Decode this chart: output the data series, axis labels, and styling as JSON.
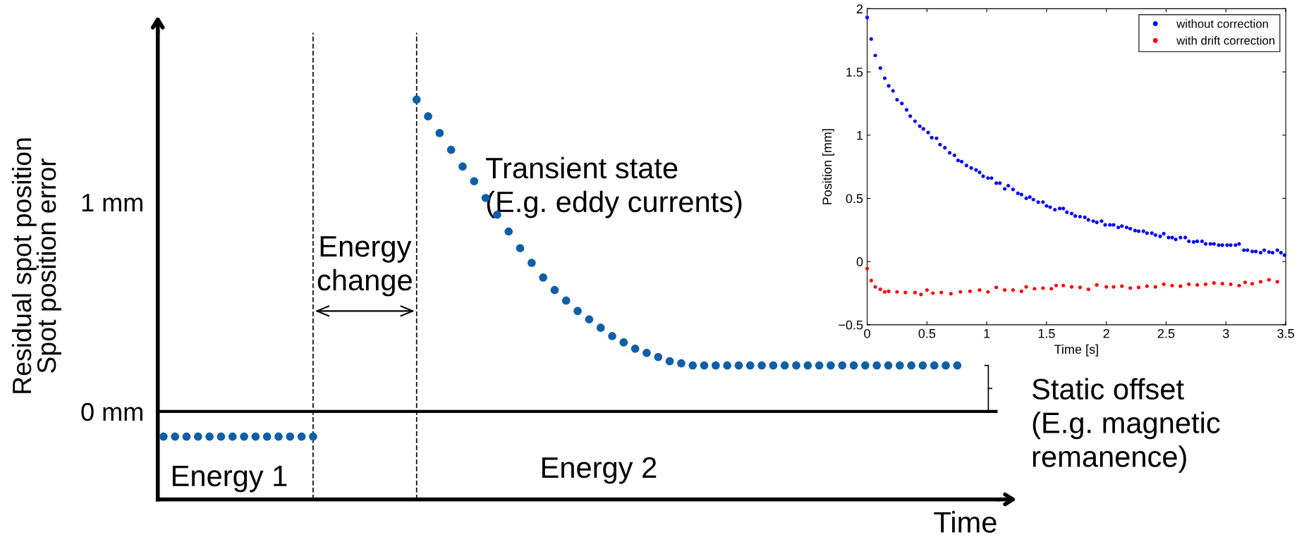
{
  "chart_data": [
    {
      "type": "scatter",
      "xlabel": "Time",
      "ylabel": "Residual spot position\nSpot position error",
      "ylim": [
        -0.42,
        1.81
      ],
      "yticks": [
        {
          "value": 0,
          "label": "0 mm"
        },
        {
          "value": 1,
          "label": "1 mm"
        }
      ],
      "tick_labels": "y",
      "grid": false,
      "legend": false,
      "marker": "circle",
      "categories": [
        null,
        null,
        null,
        null,
        null,
        null,
        null,
        null,
        null,
        null,
        null,
        null,
        null,
        null,
        null,
        null,
        null,
        null,
        null,
        null,
        null,
        null,
        null,
        null,
        null,
        null,
        null,
        null,
        null,
        null,
        null,
        null,
        null,
        null,
        null,
        null,
        null,
        null,
        null,
        null,
        null,
        null,
        null,
        null,
        null,
        null,
        null,
        null,
        null,
        null,
        null,
        null,
        null,
        null,
        null,
        null,
        null,
        null,
        null,
        null,
        null,
        null,
        null,
        null,
        null,
        null,
        null,
        null,
        null,
        null,
        null,
        null,
        null
      ],
      "series": [
        {
          "color": "#0f5fa8",
          "values": [
            -0.12,
            -0.12,
            -0.12,
            -0.12,
            -0.12,
            -0.12,
            -0.12,
            -0.12,
            -0.12,
            -0.12,
            -0.12,
            -0.12,
            -0.12,
            -0.12,
            null,
            null,
            null,
            null,
            null,
            null,
            null,
            null,
            null,
            null,
            null,
            null,
            null,
            null,
            null,
            null,
            null,
            null,
            null,
            null,
            null,
            null,
            null,
            null,
            null,
            null,
            null,
            null,
            null,
            null,
            null,
            null,
            null,
            null,
            null,
            null,
            null,
            null,
            null,
            null,
            null,
            null,
            null,
            null,
            null,
            null,
            null,
            null,
            null,
            null,
            null,
            null,
            null,
            null,
            null,
            null,
            null,
            null,
            null
          ]
        },
        {
          "color": "#0f5fa8",
          "values": [
            null,
            null,
            null,
            null,
            null,
            null,
            null,
            null,
            null,
            null,
            null,
            null,
            null,
            null,
            null,
            null,
            null,
            null,
            null,
            null,
            null,
            null,
            1.49,
            1.41,
            1.33,
            1.25,
            1.17,
            1.1,
            1.02,
            0.94,
            0.86,
            0.78,
            0.71,
            0.64,
            0.58,
            0.53,
            0.48,
            0.44,
            0.4,
            0.36,
            0.33,
            0.3,
            0.28,
            0.26,
            0.24,
            0.23,
            0.22,
            0.22,
            0.22,
            0.22,
            0.22,
            0.22,
            0.22,
            0.22,
            0.22,
            0.22,
            0.22,
            0.22,
            0.22,
            0.22,
            0.22,
            0.22,
            0.22,
            0.22,
            0.22,
            0.22,
            0.22,
            0.22,
            0.22,
            0.22,
            null,
            null,
            null
          ]
        }
      ],
      "ref_lines": [
        {
          "axis": "y",
          "value": 0,
          "color": "#000000",
          "line_style": "solid"
        }
      ],
      "annotations": [
        "Energy 1",
        "Energy 2",
        "Transient state\n(E.g. eddy currents)",
        "Static offset\n(E.g. magnetic\nremanence)",
        "Energy\nchange"
      ]
    },
    {
      "type": "scatter",
      "xlabel": "Time [s]",
      "ylabel": "Position [mm]",
      "xlim": [
        0,
        3.5
      ],
      "ylim": [
        -0.5,
        2
      ],
      "xticks": [
        0,
        0.5,
        1,
        1.5,
        2,
        2.5,
        3,
        3.5
      ],
      "yticks": [
        {
          "value": -0.5,
          "label": "−0.5"
        },
        0,
        0.5,
        1,
        1.5,
        2
      ],
      "grid": false,
      "legend": "top right",
      "marker": "circle",
      "series": [
        {
          "name": "without correction",
          "color": "#0000ff",
          "x": [
            0,
            0.034,
            0.068,
            0.11,
            0.147,
            0.18,
            0.216,
            0.25,
            0.29,
            0.33,
            0.36,
            0.4,
            0.44,
            0.47,
            0.51,
            0.54,
            0.58,
            0.61,
            0.65,
            0.69,
            0.73,
            0.76,
            0.79,
            0.83,
            0.87,
            0.91,
            0.94,
            0.97,
            1.01,
            1.04,
            1.08,
            1.11,
            1.15,
            1.18,
            1.22,
            1.26,
            1.29,
            1.33,
            1.36,
            1.39,
            1.43,
            1.47,
            1.5,
            1.53,
            1.57,
            1.61,
            1.64,
            1.67,
            1.71,
            1.74,
            1.78,
            1.82,
            1.85,
            1.89,
            1.92,
            1.96,
            1.99,
            2.03,
            2.06,
            2.1,
            2.13,
            2.17,
            2.2,
            2.24,
            2.27,
            2.31,
            2.34,
            2.38,
            2.41,
            2.45,
            2.48,
            2.52,
            2.55,
            2.58,
            2.62,
            2.66,
            2.69,
            2.73,
            2.76,
            2.8,
            2.83,
            2.87,
            2.9,
            2.94,
            2.97,
            3.01,
            3.04,
            3.08,
            3.11,
            3.15,
            3.18,
            3.22,
            3.25,
            3.29,
            3.32,
            3.36,
            3.39,
            3.43,
            3.46,
            3.49
          ],
          "values": [
            1.93,
            1.76,
            1.63,
            1.53,
            1.45,
            1.39,
            1.35,
            1.28,
            1.25,
            1.2,
            1.15,
            1.11,
            1.07,
            1.05,
            1.02,
            0.98,
            0.975,
            0.925,
            0.9,
            0.86,
            0.84,
            0.8,
            0.79,
            0.76,
            0.74,
            0.725,
            0.705,
            0.675,
            0.66,
            0.66,
            0.62,
            0.62,
            0.575,
            0.6,
            0.57,
            0.54,
            0.53,
            0.5,
            0.51,
            0.49,
            0.47,
            0.47,
            0.44,
            0.43,
            0.41,
            0.42,
            0.42,
            0.39,
            0.38,
            0.36,
            0.355,
            0.35,
            0.33,
            0.32,
            0.31,
            0.32,
            0.29,
            0.29,
            0.29,
            0.27,
            0.28,
            0.27,
            0.26,
            0.245,
            0.24,
            0.24,
            0.225,
            0.225,
            0.21,
            0.2,
            0.22,
            0.19,
            0.19,
            0.175,
            0.19,
            0.19,
            0.16,
            0.155,
            0.16,
            0.16,
            0.14,
            0.14,
            0.14,
            0.13,
            0.13,
            0.13,
            0.13,
            0.13,
            0.14,
            0.09,
            0.09,
            0.08,
            0.08,
            0.07,
            0.09,
            0.075,
            0.07,
            0.09,
            0.07,
            0.05
          ]
        },
        {
          "name": "with drift correction",
          "color": "#ff0000",
          "x": [
            0,
            0.034,
            0.068,
            0.11,
            0.147,
            0.18,
            0.25,
            0.32,
            0.4,
            0.45,
            0.5,
            0.55,
            0.62,
            0.7,
            0.78,
            0.86,
            0.94,
            1.01,
            1.08,
            1.15,
            1.22,
            1.29,
            1.33,
            1.4,
            1.47,
            1.54,
            1.58,
            1.64,
            1.71,
            1.78,
            1.85,
            1.92,
            2.0,
            2.06,
            2.13,
            2.2,
            2.27,
            2.34,
            2.41,
            2.48,
            2.55,
            2.62,
            2.69,
            2.76,
            2.83,
            2.9,
            2.97,
            3.04,
            3.11,
            3.16,
            3.22,
            3.29,
            3.36,
            3.43
          ],
          "values": [
            -0.055,
            -0.15,
            -0.2,
            -0.22,
            -0.24,
            -0.235,
            -0.24,
            -0.245,
            -0.245,
            -0.26,
            -0.225,
            -0.25,
            -0.245,
            -0.255,
            -0.24,
            -0.235,
            -0.225,
            -0.24,
            -0.205,
            -0.225,
            -0.225,
            -0.235,
            -0.2,
            -0.215,
            -0.21,
            -0.215,
            -0.19,
            -0.19,
            -0.2,
            -0.205,
            -0.22,
            -0.185,
            -0.2,
            -0.2,
            -0.195,
            -0.21,
            -0.205,
            -0.195,
            -0.2,
            -0.18,
            -0.19,
            -0.195,
            -0.18,
            -0.185,
            -0.18,
            -0.17,
            -0.175,
            -0.18,
            -0.19,
            -0.165,
            -0.175,
            -0.16,
            -0.145,
            -0.16
          ]
        }
      ]
    }
  ]
}
